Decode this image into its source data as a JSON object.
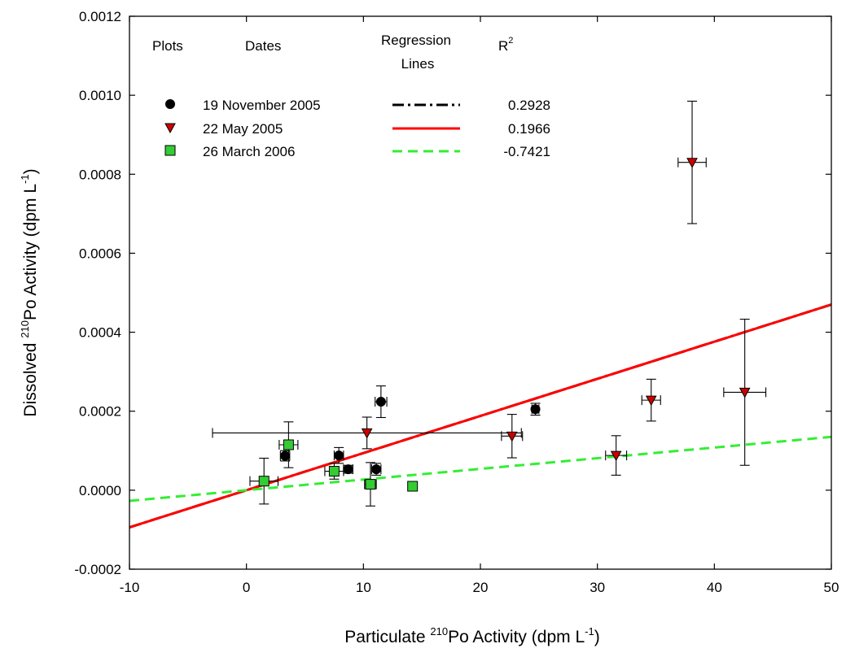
{
  "chart_data": {
    "type": "scatter",
    "xlabel": {
      "pre": "Particulate ",
      "sup1": "210",
      "mid": "Po Activity (dpm L",
      "sup2": "-1",
      "post": ")"
    },
    "ylabel": {
      "pre": "Dissolved ",
      "sup1": "210",
      "mid": "Po Activity (dpm L",
      "sup2": "-1",
      "post": ")"
    },
    "xlim": [
      -10,
      50
    ],
    "ylim": [
      -0.0002,
      0.0012
    ],
    "x_ticks": [
      -10,
      0,
      10,
      20,
      30,
      40,
      50
    ],
    "x_tick_labels": [
      "-10",
      "0",
      "10",
      "20",
      "30",
      "40",
      "50"
    ],
    "y_ticks": [
      -0.0002,
      0.0,
      0.0002,
      0.0004,
      0.0006,
      0.0008,
      0.001,
      0.0012
    ],
    "y_tick_labels": [
      "-0.0002",
      "0.0000",
      "0.0002",
      "0.0004",
      "0.0006",
      "0.0008",
      "0.0010",
      "0.0012"
    ],
    "grid": false,
    "legend": {
      "headers": {
        "plots": "Plots",
        "dates": "Dates",
        "regression_1": "Regression",
        "regression_2": "Lines",
        "r2_base": "R",
        "r2_sup": "2"
      }
    },
    "series": [
      {
        "name": "19 November 2005",
        "r2": "0.2928",
        "marker": "circle",
        "color": "#000000",
        "line_style": "dash-dot",
        "line_color": "#000000",
        "regression": {
          "intercept": 0.0,
          "slope": 9.4e-06
        },
        "points": [
          {
            "x": 3.3,
            "y": 8.7e-05,
            "yerr": 1.3e-05,
            "xerr": 0.4
          },
          {
            "x": 7.9,
            "y": 8.8e-05,
            "yerr": 2e-05,
            "xerr": 0.4
          },
          {
            "x": 8.7,
            "y": 5.3e-05,
            "yerr": 1e-05,
            "xerr": 0.4
          },
          {
            "x": 11.1,
            "y": 5.3e-05,
            "yerr": 1.5e-05,
            "xerr": 0.4
          },
          {
            "x": 11.5,
            "y": 0.000224,
            "yerr": 4e-05,
            "xerr": 0.5
          },
          {
            "x": 24.7,
            "y": 0.000205,
            "yerr": 1.5e-05,
            "xerr": 0.3
          }
        ]
      },
      {
        "name": "22 May 2005",
        "r2": "0.1966",
        "marker": "triangle-down",
        "color": "#cc0000",
        "line_style": "solid",
        "line_color": "#ff0000",
        "regression": {
          "intercept": 0.0,
          "slope": 9.4e-06
        },
        "points": [
          {
            "x": 10.3,
            "y": 0.000145,
            "yerr": 4e-05,
            "xerr": 13.2
          },
          {
            "x": 22.7,
            "y": 0.000137,
            "yerr": 5.5e-05,
            "xerr": 0.9
          },
          {
            "x": 31.6,
            "y": 8.8e-05,
            "yerr": 5e-05,
            "xerr": 0.9
          },
          {
            "x": 34.6,
            "y": 0.000228,
            "yerr": 5.3e-05,
            "xerr": 0.8
          },
          {
            "x": 38.1,
            "y": 0.00083,
            "yerr": 0.000155,
            "xerr": 1.2
          },
          {
            "x": 42.6,
            "y": 0.000248,
            "yerr": 0.000185,
            "xerr": 1.8
          }
        ]
      },
      {
        "name": "26 March 2006",
        "r2": "-0.7421",
        "marker": "square",
        "color": "#33cc33",
        "line_style": "dashed",
        "line_color": "#33ee33",
        "regression": {
          "intercept": 0.0,
          "slope": 2.7e-06
        },
        "points": [
          {
            "x": 1.5,
            "y": 2.3e-05,
            "yerr": 5.8e-05,
            "xerr": 1.2
          },
          {
            "x": 3.6,
            "y": 0.000115,
            "yerr": 5.8e-05,
            "xerr": 0.8
          },
          {
            "x": 7.5,
            "y": 4.8e-05,
            "yerr": 2e-05,
            "xerr": 0.8
          },
          {
            "x": 10.6,
            "y": 1.5e-05,
            "yerr": 5.5e-05,
            "xerr": 0.5
          },
          {
            "x": 14.2,
            "y": 1e-05,
            "yerr": 1e-05,
            "xerr": 0.3
          }
        ]
      }
    ]
  }
}
